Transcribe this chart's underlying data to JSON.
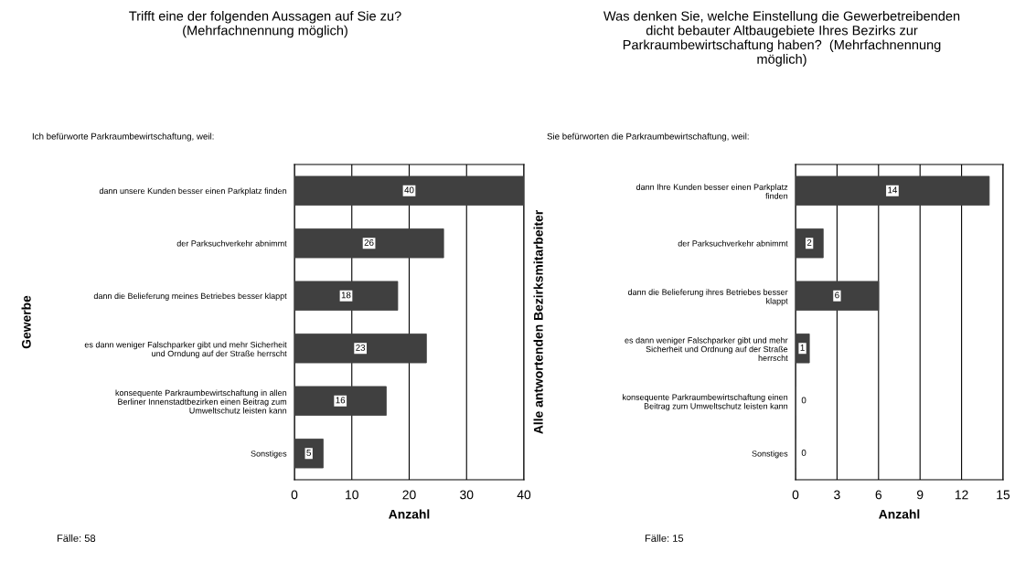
{
  "chart_data": [
    {
      "type": "bar",
      "orientation": "horizontal",
      "title": "Trifft eine der folgenden Aussagen auf Sie zu?\n(Mehrfachnennung möglich)",
      "subtitle": "Ich befürworte Parkraumbewirtschaftung, weil:",
      "ylabel": "Gewerbe",
      "xlabel": "Anzahl",
      "categories": [
        "dann unsere Kunden besser einen Parkplatz finden",
        "der Parksuchverkehr abnimmt",
        "dann die Belieferung meines Betriebes besser klappt",
        "es dann weniger Falschparker gibt und mehr Sicherheit\nund Orndung auf der Straße herrscht",
        "konsequente Parkraumbewirtschaftung in allen\nBerliner Innenstadtbezirken einen Beitrag zum\nUmweltschutz leisten kann",
        "Sonstiges"
      ],
      "values": [
        40,
        26,
        18,
        23,
        16,
        5
      ],
      "color": "#404040",
      "xlim": [
        0,
        40
      ],
      "xticks": [
        0,
        10,
        20,
        30,
        40
      ],
      "grid": "x",
      "data_labels": true,
      "annotations": [
        "Fälle: 58"
      ]
    },
    {
      "type": "bar",
      "orientation": "horizontal",
      "title": "Was denken Sie, welche Einstellung die Gewerbetreibenden\ndicht bebauter Altbaugebiete Ihres Bezirks zur\nParkraumbewirtschaftung haben?  (Mehrfachnennung\nmöglich)",
      "subtitle": "Sie befürworten die Parkraumbewirtschaftung, weil:",
      "ylabel": "Alle antwortenden Bezirksmitarbeiter",
      "xlabel": "Anzahl",
      "categories": [
        "dann Ihre Kunden besser einen Parkplatz\nfinden",
        "der Parksuchverkehr abnimmt",
        "dann die Belieferung ihres Betriebes besser\nklappt",
        "es dann weniger Falschparker gibt und mehr\nSicherheit und Ordnung auf der Straße\nherrscht",
        "konsequente Parkraumbewirtschaftung einen\nBeitrag zum Umweltschutz leisten kann",
        "Sonstiges"
      ],
      "values": [
        14,
        2,
        6,
        1,
        0,
        0
      ],
      "color": "#404040",
      "xlim": [
        0,
        15
      ],
      "xticks": [
        0,
        3,
        6,
        9,
        12,
        15
      ],
      "grid": "x",
      "data_labels": true,
      "annotations": [
        "Fälle: 15"
      ]
    }
  ]
}
